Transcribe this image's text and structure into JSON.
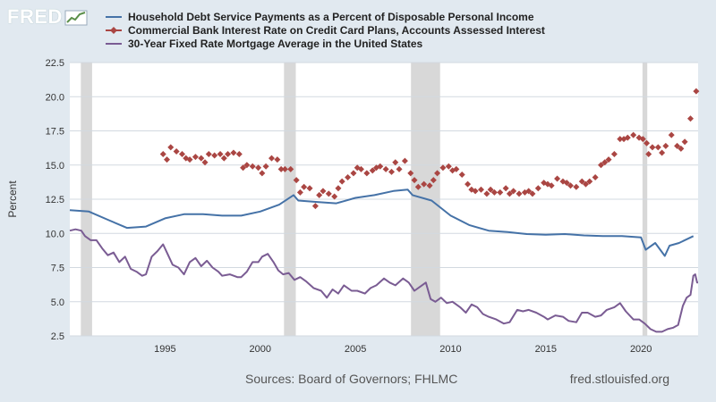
{
  "brand": {
    "wordmark": "FRED"
  },
  "colors": {
    "debt": "#4572a7",
    "credit": "#aa4643",
    "mortgage": "#7a5c93",
    "recession": "#d8d8d8",
    "grid": "#d2d9e0"
  },
  "footer": {
    "source": "Sources: Board of Governors; FHLMC",
    "url": "fred.stlouisfed.org"
  },
  "chart_data": {
    "type": "line",
    "ylabel": "Percent",
    "ylim": [
      2.5,
      22.5
    ],
    "xlim": [
      1990.0,
      2023.0
    ],
    "yticks": [
      "2.5",
      "5.0",
      "7.5",
      "10.0",
      "12.5",
      "15.0",
      "17.5",
      "20.0",
      "22.5"
    ],
    "xticks": [
      "1995",
      "2000",
      "2005",
      "2010",
      "2015",
      "2020"
    ],
    "grid": "horizontal",
    "legend_position": "top",
    "recessions": [
      [
        1990.58,
        1991.17
      ],
      [
        2001.25,
        2001.87
      ],
      [
        2007.92,
        2009.45
      ],
      [
        2020.08,
        2020.33
      ]
    ],
    "series": [
      {
        "name": "Household Debt Service Payments as a Percent of Disposable Personal Income",
        "marker": "line",
        "points": [
          [
            1990,
            11.7
          ],
          [
            1991,
            11.6
          ],
          [
            1992,
            11.0
          ],
          [
            1993,
            10.4
          ],
          [
            1994,
            10.5
          ],
          [
            1995,
            11.1
          ],
          [
            1996,
            11.4
          ],
          [
            1997,
            11.4
          ],
          [
            1998,
            11.3
          ],
          [
            1999,
            11.3
          ],
          [
            2000,
            11.6
          ],
          [
            2001,
            12.1
          ],
          [
            2001.75,
            12.8
          ],
          [
            2002,
            12.4
          ],
          [
            2003,
            12.3
          ],
          [
            2004,
            12.2
          ],
          [
            2005,
            12.6
          ],
          [
            2006,
            12.8
          ],
          [
            2007,
            13.1
          ],
          [
            2007.75,
            13.2
          ],
          [
            2008,
            12.8
          ],
          [
            2009,
            12.4
          ],
          [
            2010,
            11.3
          ],
          [
            2011,
            10.6
          ],
          [
            2012,
            10.2
          ],
          [
            2013,
            10.1
          ],
          [
            2014,
            9.95
          ],
          [
            2015,
            9.9
          ],
          [
            2016,
            9.95
          ],
          [
            2017,
            9.85
          ],
          [
            2018,
            9.8
          ],
          [
            2019,
            9.8
          ],
          [
            2020,
            9.7
          ],
          [
            2020.25,
            8.8
          ],
          [
            2020.75,
            9.3
          ],
          [
            2021.25,
            8.35
          ],
          [
            2021.5,
            9.1
          ],
          [
            2022,
            9.3
          ],
          [
            2022.75,
            9.8
          ]
        ]
      },
      {
        "name": "Commercial Bank Interest Rate on Credit Card Plans, Accounts Assessed Interest",
        "marker": "diamond",
        "points": [
          [
            1994.9,
            15.8
          ],
          [
            1995.1,
            15.4
          ],
          [
            1995.3,
            16.3
          ],
          [
            1995.6,
            16.0
          ],
          [
            1995.9,
            15.8
          ],
          [
            1996.1,
            15.5
          ],
          [
            1996.3,
            15.4
          ],
          [
            1996.6,
            15.6
          ],
          [
            1996.9,
            15.5
          ],
          [
            1997.1,
            15.2
          ],
          [
            1997.3,
            15.8
          ],
          [
            1997.6,
            15.7
          ],
          [
            1997.9,
            15.8
          ],
          [
            1998.1,
            15.5
          ],
          [
            1998.3,
            15.8
          ],
          [
            1998.6,
            15.9
          ],
          [
            1998.9,
            15.8
          ],
          [
            1999.1,
            14.8
          ],
          [
            1999.3,
            15.0
          ],
          [
            1999.6,
            14.9
          ],
          [
            1999.9,
            14.8
          ],
          [
            2000.1,
            14.4
          ],
          [
            2000.3,
            14.9
          ],
          [
            2000.6,
            15.5
          ],
          [
            2000.9,
            15.4
          ],
          [
            2001.1,
            14.7
          ],
          [
            2001.3,
            14.7
          ],
          [
            2001.6,
            14.7
          ],
          [
            2001.9,
            13.9
          ],
          [
            2002.1,
            13.0
          ],
          [
            2002.3,
            13.4
          ],
          [
            2002.6,
            13.3
          ],
          [
            2002.9,
            12.0
          ],
          [
            2003.1,
            12.8
          ],
          [
            2003.3,
            13.1
          ],
          [
            2003.6,
            12.9
          ],
          [
            2003.9,
            12.7
          ],
          [
            2004.1,
            13.3
          ],
          [
            2004.3,
            13.8
          ],
          [
            2004.6,
            14.1
          ],
          [
            2004.9,
            14.4
          ],
          [
            2005.1,
            14.8
          ],
          [
            2005.3,
            14.7
          ],
          [
            2005.6,
            14.4
          ],
          [
            2005.9,
            14.6
          ],
          [
            2006.1,
            14.8
          ],
          [
            2006.3,
            14.9
          ],
          [
            2006.6,
            14.7
          ],
          [
            2006.9,
            14.5
          ],
          [
            2007.1,
            15.2
          ],
          [
            2007.3,
            14.7
          ],
          [
            2007.6,
            15.3
          ],
          [
            2007.9,
            14.4
          ],
          [
            2008.1,
            13.9
          ],
          [
            2008.3,
            13.4
          ],
          [
            2008.6,
            13.6
          ],
          [
            2008.9,
            13.5
          ],
          [
            2009.1,
            13.9
          ],
          [
            2009.3,
            14.4
          ],
          [
            2009.6,
            14.8
          ],
          [
            2009.9,
            14.9
          ],
          [
            2010.1,
            14.6
          ],
          [
            2010.3,
            14.7
          ],
          [
            2010.6,
            14.3
          ],
          [
            2010.9,
            13.6
          ],
          [
            2011.1,
            13.2
          ],
          [
            2011.3,
            13.1
          ],
          [
            2011.6,
            13.2
          ],
          [
            2011.9,
            12.9
          ],
          [
            2012.1,
            13.2
          ],
          [
            2012.3,
            13.0
          ],
          [
            2012.6,
            13.0
          ],
          [
            2012.9,
            13.3
          ],
          [
            2013.1,
            12.9
          ],
          [
            2013.3,
            13.1
          ],
          [
            2013.6,
            12.9
          ],
          [
            2013.9,
            13.0
          ],
          [
            2014.1,
            13.1
          ],
          [
            2014.3,
            12.9
          ],
          [
            2014.6,
            13.3
          ],
          [
            2014.9,
            13.7
          ],
          [
            2015.1,
            13.6
          ],
          [
            2015.3,
            13.5
          ],
          [
            2015.6,
            14.0
          ],
          [
            2015.9,
            13.8
          ],
          [
            2016.1,
            13.7
          ],
          [
            2016.3,
            13.5
          ],
          [
            2016.6,
            13.4
          ],
          [
            2016.9,
            13.8
          ],
          [
            2017.1,
            13.6
          ],
          [
            2017.3,
            13.8
          ],
          [
            2017.6,
            14.1
          ],
          [
            2017.9,
            15.0
          ],
          [
            2018.1,
            15.2
          ],
          [
            2018.3,
            15.4
          ],
          [
            2018.6,
            15.8
          ],
          [
            2018.9,
            16.9
          ],
          [
            2019.1,
            16.9
          ],
          [
            2019.3,
            17.0
          ],
          [
            2019.6,
            17.2
          ],
          [
            2019.9,
            17.0
          ],
          [
            2020.1,
            16.9
          ],
          [
            2020.3,
            16.6
          ],
          [
            2020.4,
            15.8
          ],
          [
            2020.6,
            16.3
          ],
          [
            2020.9,
            16.3
          ],
          [
            2021.1,
            15.9
          ],
          [
            2021.3,
            16.4
          ],
          [
            2021.6,
            17.2
          ],
          [
            2021.9,
            16.4
          ],
          [
            2022.1,
            16.2
          ],
          [
            2022.3,
            16.7
          ],
          [
            2022.6,
            18.4
          ],
          [
            2022.9,
            20.4
          ]
        ]
      },
      {
        "name": "30-Year Fixed Rate Mortgage Average in the United States",
        "marker": "line",
        "points": [
          [
            1990,
            10.2
          ],
          [
            1990.3,
            10.3
          ],
          [
            1990.6,
            10.2
          ],
          [
            1990.8,
            9.8
          ],
          [
            1991.1,
            9.5
          ],
          [
            1991.4,
            9.5
          ],
          [
            1991.7,
            8.9
          ],
          [
            1992,
            8.4
          ],
          [
            1992.3,
            8.6
          ],
          [
            1992.6,
            7.9
          ],
          [
            1992.9,
            8.3
          ],
          [
            1993.2,
            7.4
          ],
          [
            1993.5,
            7.2
          ],
          [
            1993.8,
            6.9
          ],
          [
            1994,
            7.0
          ],
          [
            1994.3,
            8.3
          ],
          [
            1994.6,
            8.7
          ],
          [
            1994.9,
            9.2
          ],
          [
            1995.1,
            8.6
          ],
          [
            1995.4,
            7.7
          ],
          [
            1995.7,
            7.5
          ],
          [
            1996,
            7.0
          ],
          [
            1996.3,
            7.9
          ],
          [
            1996.6,
            8.2
          ],
          [
            1996.9,
            7.6
          ],
          [
            1997.2,
            8.0
          ],
          [
            1997.5,
            7.5
          ],
          [
            1997.8,
            7.2
          ],
          [
            1998,
            6.9
          ],
          [
            1998.4,
            7.0
          ],
          [
            1998.8,
            6.8
          ],
          [
            1999,
            6.8
          ],
          [
            1999.3,
            7.2
          ],
          [
            1999.6,
            7.9
          ],
          [
            1999.9,
            7.9
          ],
          [
            2000.1,
            8.3
          ],
          [
            2000.4,
            8.5
          ],
          [
            2000.7,
            7.9
          ],
          [
            2000.95,
            7.3
          ],
          [
            2001.2,
            7.0
          ],
          [
            2001.5,
            7.1
          ],
          [
            2001.8,
            6.6
          ],
          [
            2002.1,
            6.8
          ],
          [
            2002.4,
            6.5
          ],
          [
            2002.8,
            6.0
          ],
          [
            2003.2,
            5.8
          ],
          [
            2003.5,
            5.3
          ],
          [
            2003.8,
            5.9
          ],
          [
            2004.1,
            5.6
          ],
          [
            2004.4,
            6.2
          ],
          [
            2004.8,
            5.8
          ],
          [
            2005.1,
            5.8
          ],
          [
            2005.5,
            5.6
          ],
          [
            2005.8,
            6.0
          ],
          [
            2006.1,
            6.2
          ],
          [
            2006.5,
            6.7
          ],
          [
            2006.8,
            6.4
          ],
          [
            2007.1,
            6.2
          ],
          [
            2007.5,
            6.7
          ],
          [
            2007.8,
            6.4
          ],
          [
            2008.1,
            5.8
          ],
          [
            2008.4,
            6.1
          ],
          [
            2008.7,
            6.4
          ],
          [
            2008.95,
            5.2
          ],
          [
            2009.2,
            5.0
          ],
          [
            2009.5,
            5.3
          ],
          [
            2009.8,
            4.9
          ],
          [
            2010.1,
            5.0
          ],
          [
            2010.5,
            4.6
          ],
          [
            2010.8,
            4.2
          ],
          [
            2011.1,
            4.8
          ],
          [
            2011.4,
            4.6
          ],
          [
            2011.7,
            4.1
          ],
          [
            2012,
            3.9
          ],
          [
            2012.4,
            3.7
          ],
          [
            2012.8,
            3.4
          ],
          [
            2013.1,
            3.5
          ],
          [
            2013.5,
            4.4
          ],
          [
            2013.8,
            4.3
          ],
          [
            2014.1,
            4.4
          ],
          [
            2014.5,
            4.2
          ],
          [
            2014.9,
            3.9
          ],
          [
            2015.1,
            3.7
          ],
          [
            2015.5,
            4.0
          ],
          [
            2015.9,
            3.9
          ],
          [
            2016.2,
            3.6
          ],
          [
            2016.6,
            3.5
          ],
          [
            2016.9,
            4.2
          ],
          [
            2017.2,
            4.2
          ],
          [
            2017.6,
            3.9
          ],
          [
            2017.9,
            4.0
          ],
          [
            2018.2,
            4.4
          ],
          [
            2018.6,
            4.6
          ],
          [
            2018.9,
            4.9
          ],
          [
            2019.2,
            4.3
          ],
          [
            2019.6,
            3.7
          ],
          [
            2019.9,
            3.7
          ],
          [
            2020.2,
            3.4
          ],
          [
            2020.5,
            3.0
          ],
          [
            2020.8,
            2.8
          ],
          [
            2021.1,
            2.8
          ],
          [
            2021.4,
            3.0
          ],
          [
            2021.7,
            3.1
          ],
          [
            2021.95,
            3.3
          ],
          [
            2022.2,
            4.7
          ],
          [
            2022.4,
            5.3
          ],
          [
            2022.6,
            5.5
          ],
          [
            2022.75,
            6.9
          ],
          [
            2022.85,
            7.0
          ],
          [
            2022.95,
            6.4
          ],
          [
            2023.0,
            6.4
          ]
        ]
      }
    ]
  }
}
